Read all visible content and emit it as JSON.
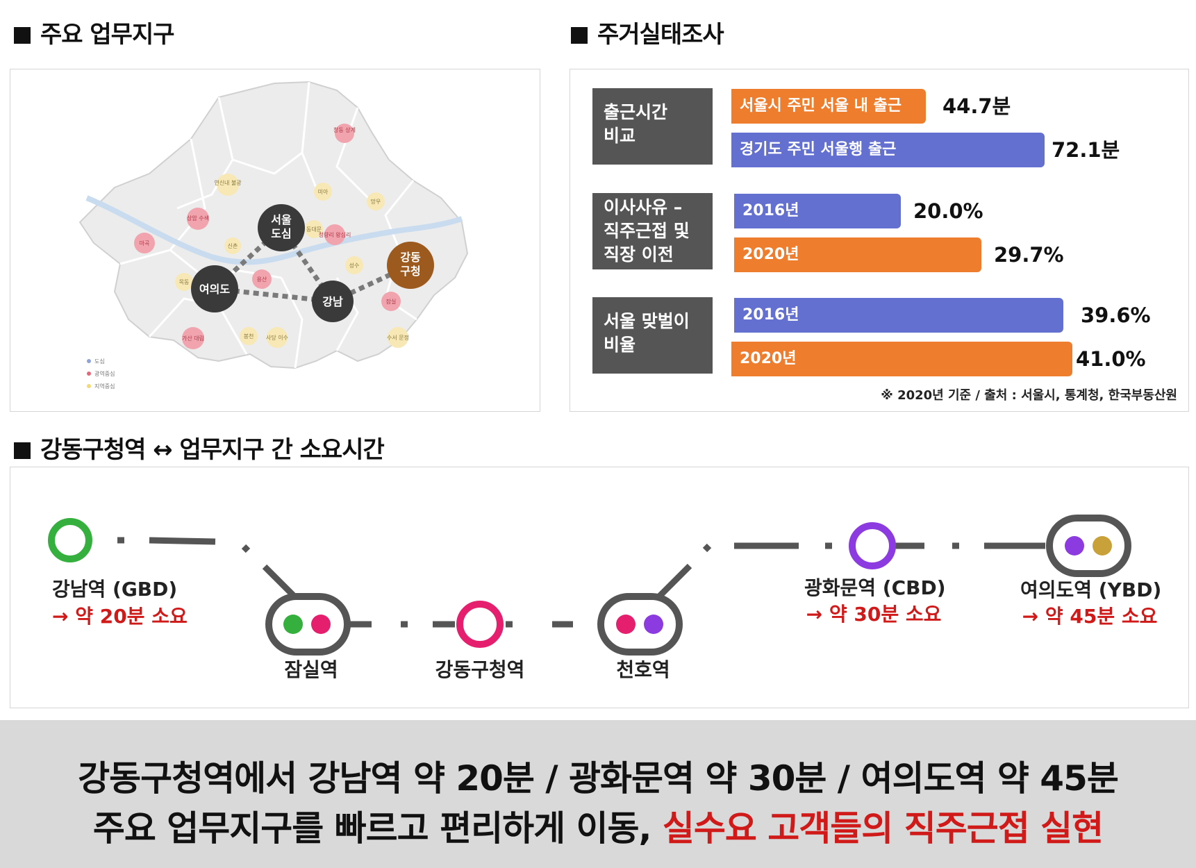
{
  "sections": {
    "map_title": "주요 업무지구",
    "survey_title": "주거실태조사",
    "route_title": "강동구청역 ↔ 업무지구 간 소요시간"
  },
  "map": {
    "hubs": [
      "서울\n도심",
      "여의도",
      "강남",
      "강동\n구청"
    ],
    "small_labels": [
      "상암\n수색",
      "마곡",
      "신촌",
      "목동",
      "용산",
      "가산\n대림",
      "봉천",
      "사당\n이수",
      "연신내\n불광",
      "미아",
      "망우",
      "청량리\n왕십리",
      "동대문",
      "성수",
      "잠실",
      "수서\n문정",
      "창동\n상계"
    ],
    "legend": [
      "도심",
      "광역중심",
      "지역중심"
    ],
    "colors": {
      "hub": "#3a3a3a",
      "gangdong": "#9c5a1e",
      "red": "#e06a7a",
      "yellow": "#f3d97a",
      "blue": "#8fa3d8"
    }
  },
  "survey": {
    "categories": [
      {
        "label": "출근시간\n비교",
        "bars": [
          {
            "label": "서울시 주민 서울 내 출근",
            "value": "44.7분",
            "color": "orange",
            "num": 44.7
          },
          {
            "label": "경기도 주민 서울행 출근",
            "value": "72.1분",
            "color": "blue",
            "num": 72.1
          }
        ]
      },
      {
        "label": "이사사유 –\n직주근접 및\n직장 이전",
        "bars": [
          {
            "label": "2016년",
            "value": "20.0%",
            "color": "blue",
            "num": 20.0
          },
          {
            "label": "2020년",
            "value": "29.7%",
            "color": "orange",
            "num": 29.7
          }
        ]
      },
      {
        "label": "서울 맞벌이\n비율",
        "bars": [
          {
            "label": "2016년",
            "value": "39.6%",
            "color": "blue",
            "num": 39.6
          },
          {
            "label": "2020년",
            "value": "41.0%",
            "color": "orange",
            "num": 41.0
          }
        ]
      }
    ],
    "note": "※ 2020년 기준 / 출처 : 서울시, 통계청, 한국부동산원"
  },
  "route": {
    "stations": {
      "gangnam": {
        "name": "강남역 (GBD)",
        "time": "→ 약 20분 소요"
      },
      "jamsil": {
        "name": "잠실역"
      },
      "gangdong": {
        "name": "강동구청역"
      },
      "cheonho": {
        "name": "천호역"
      },
      "gwanghwamun": {
        "name": "광화문역 (CBD)",
        "time": "→ 약 30분 소요"
      },
      "yeouido": {
        "name": "여의도역 (YBD)",
        "time": "→ 약 45분 소요"
      }
    },
    "colors": {
      "line2": "#35b03f",
      "line8": "#e61e6e",
      "line5": "#8b3be0",
      "line9": "#c9a13a",
      "track": "#555555"
    }
  },
  "banner": {
    "line1": "강동구청역에서 강남역 약 20분 / 광화문역 약 30분 / 여의도역 약 45분",
    "line2_plain": "주요 업무지구를 빠르고 편리하게 이동, ",
    "line2_highlight": "실수요 고객들의 직주근접 실현"
  }
}
